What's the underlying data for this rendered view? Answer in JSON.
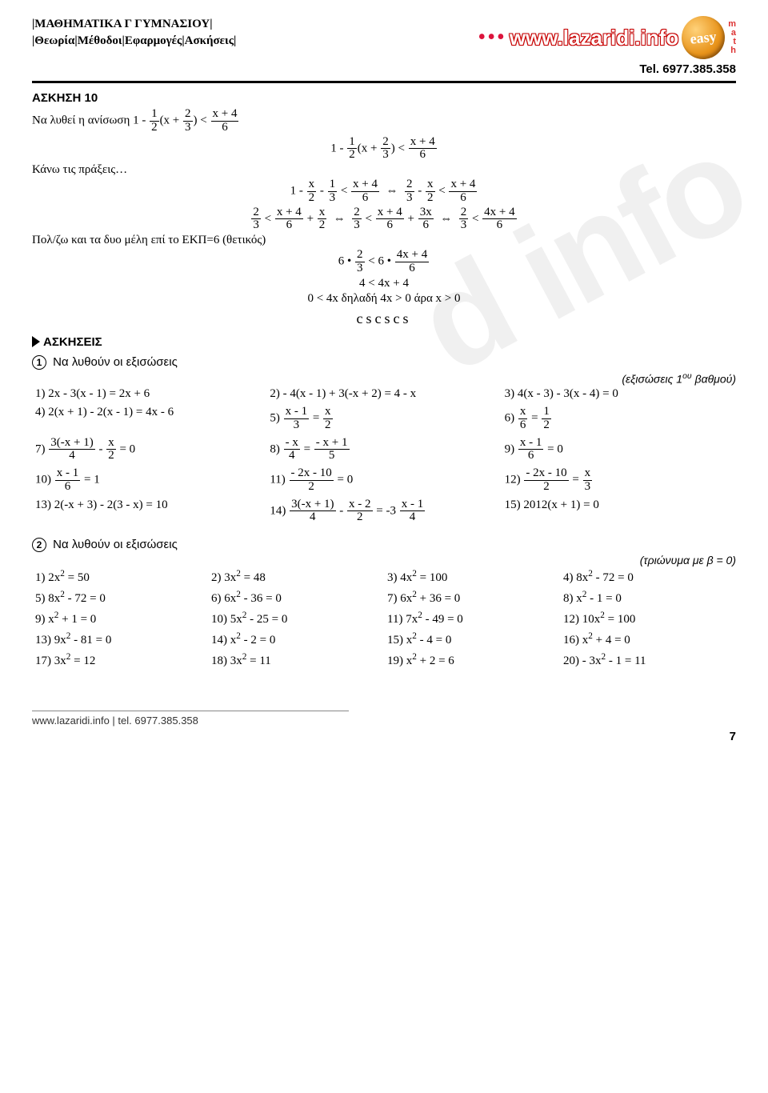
{
  "header": {
    "line1": "|ΜΑΘΗΜΑΤΙΚΑ Γ ΓΥΜΝΑΣΙΟΥ|",
    "line2": "|Θεωρία|Μέθοδοι|Εφαρμογές|Ασκήσεις|",
    "logo_text": "www.lazaridi.info",
    "easy_text": "easy",
    "math_vert": "math",
    "tel": "Tel. 6977.385.358",
    "colors": {
      "logo_red": "#cc0000",
      "badge_start": "#ffd27a",
      "badge_end": "#b3610d"
    }
  },
  "askisi10": {
    "title": "ΑΣΚΗΣΗ 10",
    "prompt_prefix": "Να λυθεί η ανίσωση ",
    "step1_label": "Κάνω τις πράξεις…",
    "step2_label": "Πολ/ζω και τα δυο μέλη επί το ΕΚΠ=6 (θετικός)",
    "line_a": "4 < 4x + 4",
    "line_b": "0 < 4x  δηλαδή  4x > 0  άρα  x > 0",
    "squiggle": "cscscs"
  },
  "exercises_heading": "ΑΣΚΗΣΕΙΣ",
  "block1": {
    "head": "Να λυθούν οι εξισώσεις",
    "note": "(εξισώσεις 1",
    "note_sup": "ου",
    "note_tail": " βαθμού)",
    "items": [
      {
        "n": "1)",
        "t": "2x - 3(x - 1) = 2x + 6"
      },
      {
        "n": "2)",
        "t": "- 4(x - 1) + 3(-x + 2) = 4 - x"
      },
      {
        "n": "3)",
        "t": "4(x - 3) - 3(x - 4) = 0"
      },
      {
        "n": "4)",
        "t": "2(x + 1) - 2(x - 1) = 4x - 6"
      },
      {
        "n": "5)",
        "frac": {
          "ln": "x - 1",
          "ld": "3",
          "op": "=",
          "rn": "x",
          "rd": "2"
        }
      },
      {
        "n": "6)",
        "frac": {
          "ln": "x",
          "ld": "6",
          "op": "=",
          "rn": "1",
          "rd": "2"
        }
      },
      {
        "n": "7)",
        "frac": {
          "ln": "3(-x + 1)",
          "ld": "4",
          "mid": " - ",
          "rn": "x",
          "rd": "2",
          "tail": " = 0"
        }
      },
      {
        "n": "8)",
        "frac": {
          "ln": "- x",
          "ld": "4",
          "op": "=",
          "rn": "- x + 1",
          "rd": "5"
        }
      },
      {
        "n": "9)",
        "frac": {
          "ln": "x - 1",
          "ld": "6",
          "tail": " = 0"
        }
      },
      {
        "n": "10)",
        "frac": {
          "ln": "x - 1",
          "ld": "6",
          "tail": " = 1"
        }
      },
      {
        "n": "11)",
        "frac": {
          "ln": "- 2x - 10",
          "ld": "2",
          "tail": " = 0"
        }
      },
      {
        "n": "12)",
        "frac": {
          "ln": "- 2x - 10",
          "ld": "2",
          "op": "=",
          "rn": "x",
          "rd": "3"
        }
      },
      {
        "n": "13)",
        "t": "2(-x + 3) - 2(3 - x) = 10"
      },
      {
        "n": "14)",
        "tri": {
          "an": "3(-x + 1)",
          "ad": "4",
          "bn": "x - 2",
          "bd": "2",
          "cn": "x - 1",
          "cd": "4",
          "op1": " - ",
          "op2": " = -3 "
        }
      },
      {
        "n": "15)",
        "t": "2012(x + 1) = 0"
      }
    ]
  },
  "block2": {
    "head": "Να λυθούν οι εξισώσεις",
    "note": "(τριώνυμα με β = 0)",
    "items": [
      {
        "n": "1)",
        "b": "2x",
        "e": "2",
        "t": " = 50"
      },
      {
        "n": "2)",
        "b": "3x",
        "e": "2",
        "t": " = 48"
      },
      {
        "n": "3)",
        "b": "4x",
        "e": "2",
        "t": " = 100"
      },
      {
        "n": "4)",
        "b": "8x",
        "e": "2",
        "t": " - 72 = 0"
      },
      {
        "n": "5)",
        "b": "8x",
        "e": "2",
        "t": " - 72 = 0"
      },
      {
        "n": "6)",
        "b": "6x",
        "e": "2",
        "t": " - 36 = 0"
      },
      {
        "n": "7)",
        "b": "6x",
        "e": "2",
        "t": " + 36 = 0"
      },
      {
        "n": "8)",
        "b": "x",
        "e": "2",
        "t": " - 1 = 0"
      },
      {
        "n": "9)",
        "b": "x",
        "e": "2",
        "t": " + 1 = 0"
      },
      {
        "n": "10)",
        "b": "5x",
        "e": "2",
        "t": " - 25 = 0"
      },
      {
        "n": "11)",
        "b": "7x",
        "e": "2",
        "t": " - 49 = 0"
      },
      {
        "n": "12)",
        "b": "10x",
        "e": "2",
        "t": " = 100"
      },
      {
        "n": "13)",
        "b": "9x",
        "e": "2",
        "t": " - 81 = 0"
      },
      {
        "n": "14)",
        "b": "x",
        "e": "2",
        "t": " - 2 = 0"
      },
      {
        "n": "15)",
        "b": "x",
        "e": "2",
        "t": " - 4 = 0"
      },
      {
        "n": "16)",
        "b": "x",
        "e": "2",
        "t": " + 4 = 0"
      },
      {
        "n": "17)",
        "b": "3x",
        "e": "2",
        "t": " = 12"
      },
      {
        "n": "18)",
        "b": "3x",
        "e": "2",
        "t": " = 11"
      },
      {
        "n": "19)",
        "b": "x",
        "e": "2",
        "t": " + 2 = 6"
      },
      {
        "n": "20)",
        "b": "- 3x",
        "e": "2",
        "t": " - 1 = 11"
      }
    ]
  },
  "footer": {
    "text": "www.lazaridi.info | tel. 6977.385.358",
    "page": "7"
  }
}
